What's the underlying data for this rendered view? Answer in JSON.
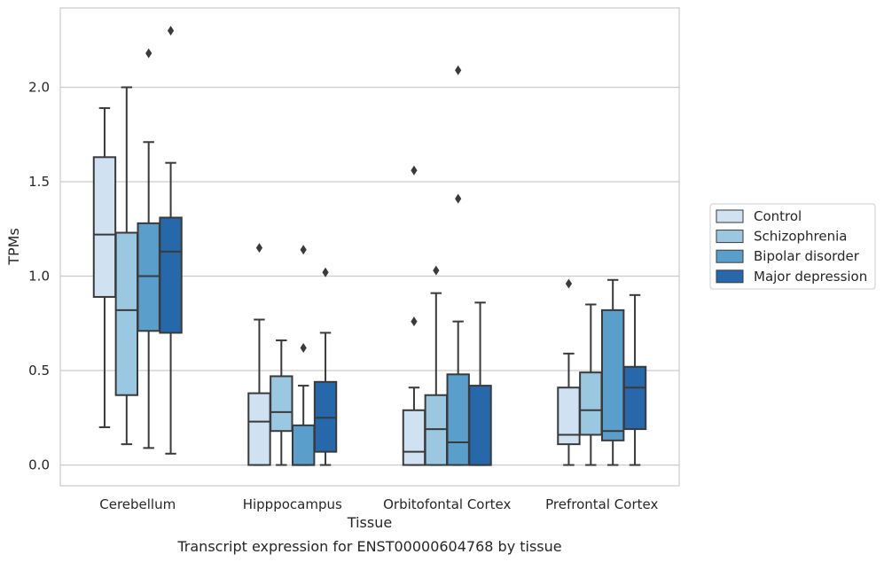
{
  "caption": "Transcript expression for ENST00000604768 by tissue",
  "chart_data": {
    "type": "box",
    "title": "",
    "xlabel": "Tissue",
    "ylabel": "TPMs",
    "ylim": [
      -0.11,
      2.42
    ],
    "yticks": [
      0.0,
      0.5,
      1.0,
      1.5,
      2.0
    ],
    "ytick_labels": [
      "0.0",
      "0.5",
      "1.0",
      "1.5",
      "2.0"
    ],
    "grid": "horizontal",
    "legend_position": "right",
    "categories": [
      "Cerebellum",
      "Hipppocampus",
      "Orbitofontal Cortex",
      "Prefrontal Cortex"
    ],
    "series": [
      {
        "name": "Control",
        "color": "#d0e1f2",
        "boxes": [
          {
            "whislo": 0.2,
            "q1": 0.89,
            "med": 1.22,
            "q3": 1.63,
            "whishi": 1.89,
            "fliers": []
          },
          {
            "whislo": 0.0,
            "q1": 0.0,
            "med": 0.23,
            "q3": 0.38,
            "whishi": 0.77,
            "fliers": [
              1.15
            ]
          },
          {
            "whislo": 0.0,
            "q1": 0.0,
            "med": 0.07,
            "q3": 0.29,
            "whishi": 0.41,
            "fliers": [
              0.76,
              1.56
            ]
          },
          {
            "whislo": 0.0,
            "q1": 0.11,
            "med": 0.16,
            "q3": 0.41,
            "whishi": 0.59,
            "fliers": [
              0.96
            ]
          }
        ]
      },
      {
        "name": "Schizophrenia",
        "color": "#9ac8e0",
        "boxes": [
          {
            "whislo": 0.11,
            "q1": 0.37,
            "med": 0.82,
            "q3": 1.23,
            "whishi": 2.0,
            "fliers": []
          },
          {
            "whislo": 0.0,
            "q1": 0.18,
            "med": 0.28,
            "q3": 0.47,
            "whishi": 0.66,
            "fliers": []
          },
          {
            "whislo": 0.0,
            "q1": 0.0,
            "med": 0.19,
            "q3": 0.37,
            "whishi": 0.91,
            "fliers": [
              1.03
            ]
          },
          {
            "whislo": 0.0,
            "q1": 0.16,
            "med": 0.29,
            "q3": 0.49,
            "whishi": 0.85,
            "fliers": []
          }
        ]
      },
      {
        "name": "Bipolar disorder",
        "color": "#5a9ecc",
        "boxes": [
          {
            "whislo": 0.09,
            "q1": 0.71,
            "med": 1.0,
            "q3": 1.28,
            "whishi": 1.71,
            "fliers": [
              2.18
            ]
          },
          {
            "whislo": 0.0,
            "q1": 0.0,
            "med": 0.0,
            "q3": 0.21,
            "whishi": 0.42,
            "fliers": [
              0.62,
              1.14
            ]
          },
          {
            "whislo": 0.0,
            "q1": 0.0,
            "med": 0.12,
            "q3": 0.48,
            "whishi": 0.76,
            "fliers": [
              1.41,
              2.09
            ]
          },
          {
            "whislo": 0.0,
            "q1": 0.13,
            "med": 0.18,
            "q3": 0.82,
            "whishi": 0.98,
            "fliers": []
          }
        ]
      },
      {
        "name": "Major depression",
        "color": "#2668aa",
        "boxes": [
          {
            "whislo": 0.06,
            "q1": 0.7,
            "med": 1.13,
            "q3": 1.31,
            "whishi": 1.6,
            "fliers": [
              2.3
            ]
          },
          {
            "whislo": 0.0,
            "q1": 0.07,
            "med": 0.25,
            "q3": 0.44,
            "whishi": 0.7,
            "fliers": [
              1.02
            ]
          },
          {
            "whislo": 0.0,
            "q1": 0.0,
            "med": 0.0,
            "q3": 0.42,
            "whishi": 0.86,
            "fliers": []
          },
          {
            "whislo": 0.0,
            "q1": 0.19,
            "med": 0.41,
            "q3": 0.52,
            "whishi": 0.9,
            "fliers": []
          }
        ]
      }
    ]
  }
}
